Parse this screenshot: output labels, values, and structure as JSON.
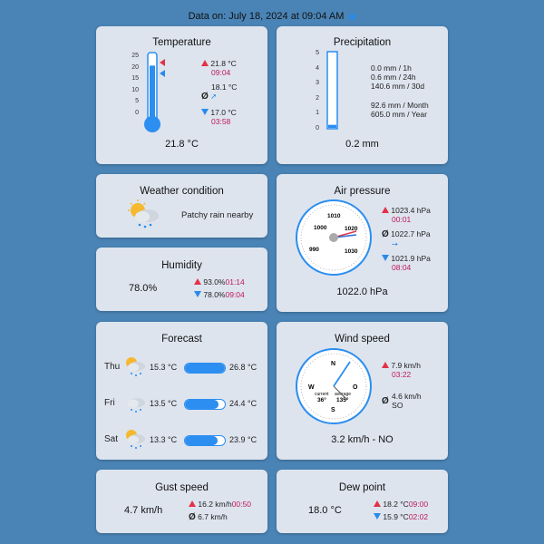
{
  "header": {
    "text": "Data on: July 18, 2024 at 09:04 AM"
  },
  "temperature": {
    "title": "Temperature",
    "ticks": [
      "25",
      "20",
      "15",
      "10",
      "5",
      "0"
    ],
    "max_value": "21.8 °C",
    "max_time": "09:04",
    "avg_value": "18.1 °C",
    "min_value": "17.0 °C",
    "min_time": "03:58",
    "current": "21.8 °C",
    "level": 21.8,
    "scale_max": 25
  },
  "precipitation": {
    "title": "Precipitation",
    "ticks": [
      "5",
      "4",
      "3",
      "2",
      "1",
      "0"
    ],
    "lines": [
      "0.0 mm  / 1h",
      "0.6 mm  / 24h",
      "140.6 mm / 30d"
    ],
    "lines2": [
      "92.6 mm  / Month",
      "605.0 mm / Year"
    ],
    "current": "0.2 mm",
    "level": 0.2,
    "scale_max": 5
  },
  "weather": {
    "title": "Weather condition",
    "condition": "Patchy rain nearby",
    "icon": "sun-cloud-rain-icon"
  },
  "humidity": {
    "title": "Humidity",
    "current": "78.0%",
    "max_value": "93.0%",
    "max_time": "01:14",
    "min_value": "78.0%",
    "min_time": "09:04"
  },
  "pressure": {
    "title": "Air pressure",
    "dial_labels": [
      "1000",
      "1010",
      "1020",
      "990",
      "1030"
    ],
    "max_value": "1023.4 hPa",
    "max_time": "00:01",
    "avg_value": "1022.7 hPa",
    "min_value": "1021.9 hPa",
    "min_time": "08:04",
    "current": "1022.0 hPa"
  },
  "forecast": {
    "title": "Forecast",
    "days": [
      {
        "day": "Thu",
        "low": "15.3 °C",
        "high": "26.8 °C",
        "icon": "sun-cloud-rain-icon",
        "fill_start": 0.0,
        "fill_end": 1.0
      },
      {
        "day": "Fri",
        "low": "13.5 °C",
        "high": "24.4 °C",
        "icon": "cloud-rain-icon",
        "fill_start": 0.0,
        "fill_end": 0.85
      },
      {
        "day": "Sat",
        "low": "13.3 °C",
        "high": "23.9 °C",
        "icon": "sun-cloud-rain-icon",
        "fill_start": 0.0,
        "fill_end": 0.82
      }
    ]
  },
  "wind": {
    "title": "Wind speed",
    "compass": [
      "N",
      "O",
      "S",
      "W"
    ],
    "current_label": "current",
    "current_dir": "36°",
    "average_label": "average",
    "average_dir": "135°",
    "max_value": "7.9 km/h",
    "max_time": "03:22",
    "avg_value": "4.6 km/h",
    "avg_dir": "SO",
    "current": "3.2 km/h - NO"
  },
  "gust": {
    "title": "Gust speed",
    "current": "4.7 km/h",
    "max_value": "16.2 km/h",
    "max_time": "00:50",
    "avg_value": "6.7 km/h"
  },
  "dew": {
    "title": "Dew point",
    "current": "18.0 °C",
    "max_value": "18.2 °C",
    "max_time": "09:00",
    "min_value": "15.9 °C",
    "min_time": "02:02"
  },
  "symbols": {
    "avg": "Ø"
  },
  "colors": {
    "background": "#4a84b6",
    "card": "#dde4ee",
    "accent_blue": "#2b8ef0",
    "accent_red": "#e33247",
    "time_red": "#c0185a"
  }
}
